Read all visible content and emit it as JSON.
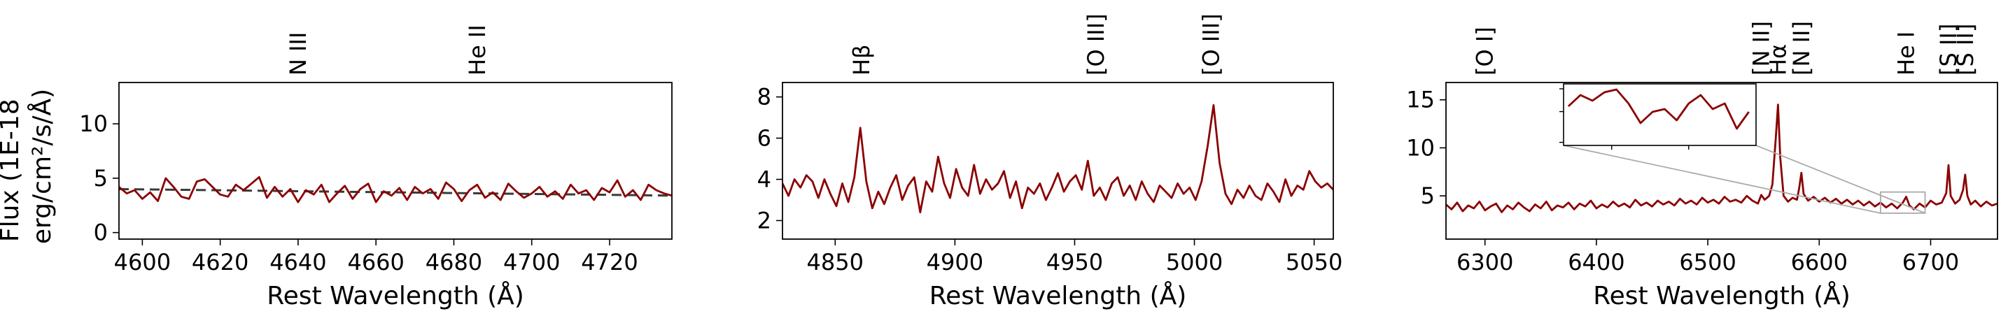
{
  "figure": {
    "ylabel_line1": "Flux (1E-18",
    "ylabel_line2": "erg/cm²/s/Å)"
  },
  "chart_data": [
    {
      "type": "line",
      "xlabel": "Rest Wavelength (Å)",
      "xlim": [
        4594,
        4736
      ],
      "ylim": [
        -0.6,
        13.8
      ],
      "xticks": [
        4600,
        4620,
        4640,
        4660,
        4680,
        4700,
        4720
      ],
      "yticks": [
        0,
        5,
        10
      ],
      "line_color": "#8b0000",
      "lines": [
        {
          "label": "N III",
          "x": 4640
        },
        {
          "label": "He II",
          "x": 4686
        }
      ],
      "continuum": {
        "style": "dashed",
        "color": "#3a3a3a",
        "y_start": 4.0,
        "y_end": 3.4
      },
      "series": [
        {
          "x": [
            4594.0,
            4596.0,
            4598.0,
            4600.0,
            4602.0,
            4604.0,
            4606.0,
            4608.0,
            4610.0,
            4612.0,
            4614.0,
            4616.0,
            4618.0,
            4620.0,
            4622.0,
            4624.0,
            4626.0,
            4628.0,
            4630.0,
            4632.0,
            4634.0,
            4636.0,
            4638.0,
            4640.0,
            4642.0,
            4644.0,
            4646.0,
            4648.0,
            4650.0,
            4652.0,
            4654.0,
            4656.0,
            4658.0,
            4660.0,
            4662.0,
            4664.0,
            4666.0,
            4668.0,
            4670.0,
            4672.0,
            4674.0,
            4676.0,
            4678.0,
            4680.0,
            4682.0,
            4684.0,
            4686.0,
            4688.0,
            4690.0,
            4692.0,
            4694.0,
            4696.0,
            4698.0,
            4700.0,
            4702.0,
            4704.0,
            4706.0,
            4708.0,
            4710.0,
            4712.0,
            4714.0,
            4716.0,
            4718.0,
            4720.0,
            4722.0,
            4724.0,
            4726.0,
            4728.0,
            4730.0,
            4732.0,
            4734.0,
            4736.0
          ],
          "y": [
            4.2,
            3.6,
            3.9,
            3.1,
            3.7,
            2.9,
            5.0,
            4.2,
            3.3,
            3.1,
            4.7,
            4.9,
            4.2,
            3.5,
            3.3,
            4.4,
            3.9,
            4.5,
            5.1,
            3.2,
            4.2,
            3.3,
            4.0,
            2.8,
            3.9,
            3.5,
            4.4,
            2.8,
            3.6,
            4.3,
            3.1,
            4.0,
            4.5,
            2.8,
            3.8,
            3.4,
            4.1,
            3.0,
            4.2,
            3.6,
            4.0,
            3.1,
            4.6,
            4.0,
            2.9,
            3.9,
            4.4,
            3.2,
            3.7,
            3.0,
            4.5,
            3.8,
            3.2,
            3.6,
            4.2,
            3.3,
            3.8,
            3.1,
            4.4,
            3.6,
            3.9,
            3.0,
            4.1,
            3.7,
            4.8,
            3.3,
            3.9,
            3.0,
            4.4,
            3.9,
            3.6,
            3.4
          ]
        }
      ]
    },
    {
      "type": "line",
      "xlabel": "Rest Wavelength (Å)",
      "xlim": [
        4828,
        5058
      ],
      "ylim": [
        1.1,
        8.7
      ],
      "xticks": [
        4850,
        4900,
        4950,
        5000,
        5050
      ],
      "yticks": [
        2,
        4,
        6,
        8
      ],
      "line_color": "#8b0000",
      "lines": [
        {
          "label": "Hβ",
          "x": 4861
        },
        {
          "label": "[O III]",
          "x": 4959
        },
        {
          "label": "[O III]",
          "x": 5007
        }
      ],
      "series": [
        {
          "x": [
            4828.0,
            4830.5,
            4833.0,
            4835.5,
            4838.0,
            4840.5,
            4843.0,
            4845.5,
            4848.0,
            4850.5,
            4853.0,
            4855.5,
            4858.0,
            4860.5,
            4863.0,
            4865.5,
            4868.0,
            4870.5,
            4873.0,
            4875.5,
            4878.0,
            4880.5,
            4883.0,
            4885.5,
            4888.0,
            4890.5,
            4893.0,
            4895.5,
            4898.0,
            4900.5,
            4903.0,
            4905.5,
            4908.0,
            4910.5,
            4913.0,
            4915.5,
            4918.0,
            4920.5,
            4923.0,
            4925.5,
            4928.0,
            4930.5,
            4933.0,
            4935.5,
            4938.0,
            4940.5,
            4943.0,
            4945.5,
            4948.0,
            4950.5,
            4953.0,
            4955.5,
            4958.0,
            4960.5,
            4963.0,
            4965.5,
            4968.0,
            4970.5,
            4973.0,
            4975.5,
            4978.0,
            4980.5,
            4983.0,
            4985.5,
            4988.0,
            4990.5,
            4993.0,
            4995.5,
            4998.0,
            5000.5,
            5003.0,
            5005.5,
            5008.0,
            5010.5,
            5013.0,
            5015.5,
            5018.0,
            5020.5,
            5023.0,
            5025.5,
            5028.0,
            5030.5,
            5033.0,
            5035.5,
            5038.0,
            5040.5,
            5043.0,
            5045.5,
            5048.0,
            5050.5,
            5053.0,
            5055.5,
            5058.0
          ],
          "y": [
            3.8,
            3.2,
            4.0,
            3.6,
            4.2,
            3.9,
            3.1,
            4.0,
            3.3,
            2.7,
            3.8,
            2.9,
            4.1,
            6.5,
            3.9,
            2.6,
            3.4,
            2.8,
            3.6,
            4.2,
            3.0,
            3.7,
            4.1,
            2.4,
            3.9,
            3.4,
            5.1,
            3.8,
            3.1,
            4.5,
            3.6,
            3.2,
            4.7,
            3.3,
            4.0,
            3.5,
            3.8,
            4.4,
            3.1,
            3.9,
            2.6,
            3.6,
            3.3,
            3.8,
            3.0,
            3.6,
            4.3,
            3.4,
            3.9,
            4.2,
            3.5,
            4.9,
            3.2,
            3.6,
            3.0,
            3.8,
            4.1,
            3.2,
            3.7,
            3.0,
            3.9,
            3.3,
            2.9,
            3.7,
            3.4,
            3.1,
            3.8,
            3.3,
            3.6,
            3.0,
            3.9,
            5.6,
            7.6,
            4.8,
            3.3,
            2.8,
            3.5,
            3.1,
            3.7,
            3.2,
            3.0,
            3.8,
            3.4,
            2.9,
            4.0,
            3.2,
            3.7,
            3.5,
            4.4,
            3.9,
            3.6,
            3.8,
            3.5
          ]
        }
      ]
    },
    {
      "type": "line",
      "xlabel": "Rest Wavelength (Å)",
      "xlim": [
        6265,
        6760
      ],
      "ylim": [
        0.5,
        16.8
      ],
      "xticks": [
        6300,
        6400,
        6500,
        6600,
        6700
      ],
      "yticks": [
        5,
        10,
        15
      ],
      "line_color": "#8b0000",
      "lines": [
        {
          "label": "[O I]",
          "x": 6300
        },
        {
          "label": "[N II]",
          "x": 6548
        },
        {
          "label": "Hα",
          "x": 6563
        },
        {
          "label": "[N II]",
          "x": 6584
        },
        {
          "label": "He I",
          "x": 6678
        },
        {
          "label": "[S II]",
          "x": 6716
        },
        {
          "label": "[S II]",
          "x": 6731
        }
      ],
      "series": [
        {
          "x": [
            6265.0,
            6270.0,
            6275.0,
            6280.0,
            6285.0,
            6290.0,
            6295.0,
            6300.0,
            6305.0,
            6310.0,
            6315.0,
            6320.0,
            6325.0,
            6330.0,
            6335.0,
            6340.0,
            6345.0,
            6350.0,
            6355.0,
            6360.0,
            6365.0,
            6370.0,
            6375.0,
            6380.0,
            6385.0,
            6390.0,
            6395.0,
            6400.0,
            6405.0,
            6410.0,
            6415.0,
            6420.0,
            6425.0,
            6430.0,
            6435.0,
            6440.0,
            6445.0,
            6450.0,
            6455.0,
            6460.0,
            6465.0,
            6470.0,
            6475.0,
            6480.0,
            6485.0,
            6490.0,
            6495.0,
            6500.0,
            6505.0,
            6510.0,
            6515.0,
            6520.0,
            6525.0,
            6530.0,
            6535.0,
            6540.0,
            6545.0,
            6548.0,
            6551.0,
            6555.0,
            6558.0,
            6561.0,
            6563.0,
            6565.0,
            6568.0,
            6572.0,
            6576.0,
            6580.0,
            6582.0,
            6584.0,
            6586.0,
            6590.0,
            6595.0,
            6600.0,
            6605.0,
            6610.0,
            6615.0,
            6620.0,
            6625.0,
            6630.0,
            6635.0,
            6640.0,
            6645.0,
            6650.0,
            6655.0,
            6660.0,
            6665.0,
            6670.0,
            6675.0,
            6678.0,
            6681.0,
            6685.0,
            6690.0,
            6695.0,
            6700.0,
            6705.0,
            6710.0,
            6714.0,
            6716.0,
            6718.0,
            6722.0,
            6726.0,
            6729.0,
            6731.0,
            6733.0,
            6736.0,
            6740.0,
            6745.0,
            6750.0,
            6755.0,
            6760.0
          ],
          "y": [
            4.1,
            3.6,
            4.3,
            3.4,
            4.0,
            3.7,
            4.4,
            3.5,
            3.9,
            4.2,
            3.3,
            4.0,
            3.6,
            4.3,
            3.8,
            3.4,
            4.1,
            3.7,
            4.4,
            3.5,
            4.0,
            3.8,
            4.3,
            3.6,
            4.2,
            3.9,
            4.5,
            3.7,
            4.1,
            3.8,
            4.4,
            3.9,
            4.2,
            3.8,
            4.6,
            4.0,
            4.3,
            3.9,
            4.5,
            4.1,
            4.4,
            4.0,
            4.7,
            4.2,
            4.5,
            4.1,
            4.8,
            4.3,
            4.6,
            4.2,
            4.9,
            4.4,
            4.6,
            4.3,
            5.0,
            4.5,
            4.2,
            5.1,
            4.6,
            5.0,
            6.2,
            11.0,
            14.5,
            9.0,
            5.0,
            4.4,
            4.8,
            4.6,
            5.8,
            7.4,
            5.2,
            4.5,
            4.9,
            4.4,
            4.8,
            4.3,
            4.7,
            4.2,
            4.6,
            4.1,
            4.5,
            4.0,
            4.4,
            3.9,
            4.3,
            3.8,
            4.2,
            3.7,
            4.3,
            4.9,
            4.0,
            3.6,
            4.2,
            3.8,
            4.5,
            4.1,
            4.3,
            5.3,
            8.2,
            5.0,
            4.2,
            4.6,
            5.6,
            7.2,
            5.0,
            4.1,
            4.5,
            3.9,
            4.4,
            4.0,
            4.2
          ]
        }
      ],
      "inset": {
        "xlim": [
          6655,
          6695
        ],
        "ylim": [
          3.2,
          5.4
        ],
        "series": [
          {
            "x": [
              6656.0,
              6658.5,
              6661.0,
              6663.5,
              6666.0,
              6668.5,
              6671.0,
              6673.5,
              6676.0,
              6678.5,
              6681.0,
              6683.5,
              6686.0,
              6688.5,
              6691.0,
              6693.5
            ],
            "y": [
              4.6,
              5.0,
              4.8,
              5.1,
              5.2,
              4.7,
              4.0,
              4.4,
              4.5,
              4.1,
              4.7,
              5.0,
              4.5,
              4.7,
              3.8,
              4.4
            ]
          }
        ]
      }
    }
  ]
}
